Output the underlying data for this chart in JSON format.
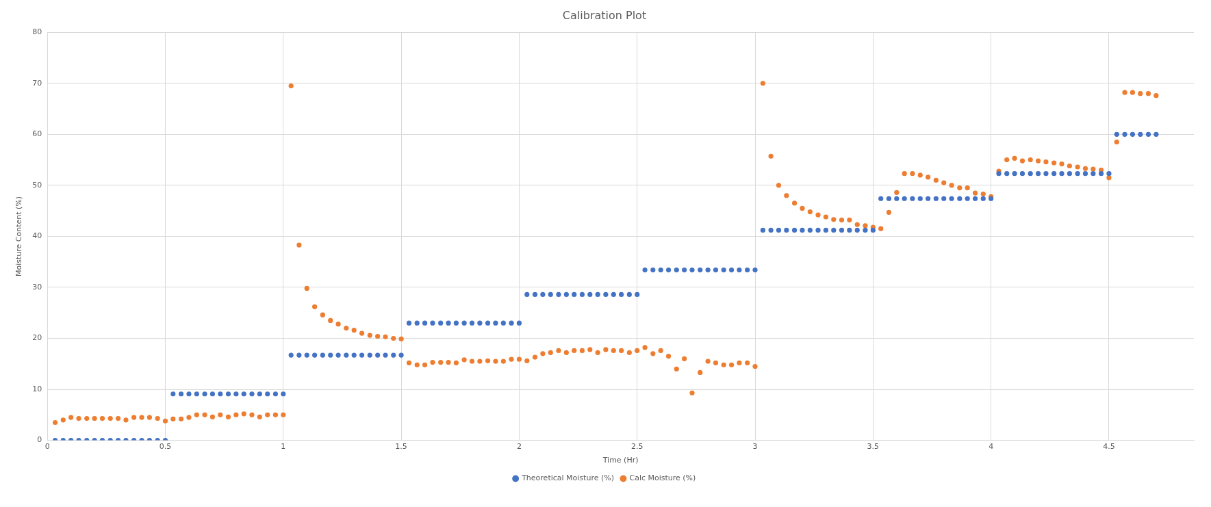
{
  "chart_data": {
    "type": "scatter",
    "title": "Calibration Plot",
    "xlabel": "Time (Hr)",
    "ylabel": "Moisture Content (%)",
    "x": [
      0.033,
      0.067,
      0.1,
      0.133,
      0.167,
      0.2,
      0.233,
      0.267,
      0.3,
      0.333,
      0.367,
      0.4,
      0.433,
      0.467,
      0.5,
      0.533,
      0.567,
      0.6,
      0.633,
      0.667,
      0.7,
      0.733,
      0.767,
      0.8,
      0.833,
      0.867,
      0.9,
      0.933,
      0.967,
      1,
      1.033,
      1.067,
      1.1,
      1.133,
      1.167,
      1.2,
      1.233,
      1.267,
      1.3,
      1.333,
      1.367,
      1.4,
      1.433,
      1.467,
      1.5,
      1.533,
      1.567,
      1.6,
      1.633,
      1.667,
      1.7,
      1.733,
      1.767,
      1.8,
      1.833,
      1.867,
      1.9,
      1.933,
      1.967,
      2,
      2.033,
      2.067,
      2.1,
      2.133,
      2.167,
      2.2,
      2.233,
      2.267,
      2.3,
      2.333,
      2.367,
      2.4,
      2.433,
      2.467,
      2.5,
      2.533,
      2.567,
      2.6,
      2.633,
      2.667,
      2.7,
      2.733,
      2.767,
      2.8,
      2.833,
      2.867,
      2.9,
      2.933,
      2.967,
      3,
      3.033,
      3.067,
      3.1,
      3.133,
      3.167,
      3.2,
      3.233,
      3.267,
      3.3,
      3.333,
      3.367,
      3.4,
      3.433,
      3.467,
      3.5,
      3.533,
      3.567,
      3.6,
      3.633,
      3.667,
      3.7,
      3.733,
      3.767,
      3.8,
      3.833,
      3.867,
      3.9,
      3.933,
      3.967,
      4,
      4.033,
      4.067,
      4.1,
      4.133,
      4.167,
      4.2,
      4.233,
      4.267,
      4.3,
      4.333,
      4.367,
      4.4,
      4.433,
      4.467,
      4.5,
      4.533,
      4.567,
      4.6,
      4.633,
      4.667,
      4.7
    ],
    "series": [
      {
        "name": "Theoretical Moisture (%)",
        "color": "#4472c4",
        "values": [
          0,
          0,
          0,
          0,
          0,
          0,
          0,
          0,
          0,
          0,
          0,
          0,
          0,
          0,
          0,
          9.1,
          9.1,
          9.1,
          9.1,
          9.1,
          9.1,
          9.1,
          9.1,
          9.1,
          9.1,
          9.1,
          9.1,
          9.1,
          9.1,
          9.1,
          16.7,
          16.7,
          16.7,
          16.7,
          16.7,
          16.7,
          16.7,
          16.7,
          16.7,
          16.7,
          16.7,
          16.7,
          16.7,
          16.7,
          16.7,
          23,
          23,
          23,
          23,
          23,
          23,
          23,
          23,
          23,
          23,
          23,
          23,
          23,
          23,
          23,
          28.6,
          28.6,
          28.6,
          28.6,
          28.6,
          28.6,
          28.6,
          28.6,
          28.6,
          28.6,
          28.6,
          28.6,
          28.6,
          28.6,
          28.6,
          33.4,
          33.4,
          33.4,
          33.4,
          33.4,
          33.4,
          33.4,
          33.4,
          33.4,
          33.4,
          33.4,
          33.4,
          33.4,
          33.4,
          33.4,
          41.2,
          41.2,
          41.2,
          41.2,
          41.2,
          41.2,
          41.2,
          41.2,
          41.2,
          41.2,
          41.2,
          41.2,
          41.2,
          41.2,
          41.2,
          47.4,
          47.4,
          47.4,
          47.4,
          47.4,
          47.4,
          47.4,
          47.4,
          47.4,
          47.4,
          47.4,
          47.4,
          47.4,
          47.4,
          47.4,
          52.3,
          52.3,
          52.3,
          52.3,
          52.3,
          52.3,
          52.3,
          52.3,
          52.3,
          52.3,
          52.3,
          52.3,
          52.3,
          52.3,
          52.3,
          60,
          60,
          60,
          60,
          60,
          60
        ]
      },
      {
        "name": "Calc Moisture (%)",
        "color": "#ed7d31",
        "values": [
          3.5,
          4,
          4.5,
          4.3,
          4.3,
          4.3,
          4.3,
          4.3,
          4.3,
          4,
          4.5,
          4.5,
          4.5,
          4.3,
          3.8,
          4.2,
          4.2,
          4.5,
          5,
          5,
          4.6,
          5,
          4.6,
          5,
          5.2,
          5,
          4.6,
          5,
          5,
          5,
          69.5,
          38.3,
          29.8,
          26.2,
          24.6,
          23.5,
          22.8,
          22,
          21.6,
          21,
          20.6,
          20.4,
          20.3,
          20,
          19.9,
          15.2,
          14.8,
          14.8,
          15.3,
          15.3,
          15.3,
          15.2,
          15.8,
          15.5,
          15.5,
          15.6,
          15.5,
          15.5,
          15.9,
          15.9,
          15.6,
          16.3,
          17,
          17.2,
          17.6,
          17.2,
          17.6,
          17.6,
          17.8,
          17.2,
          17.8,
          17.6,
          17.6,
          17.2,
          17.6,
          18.2,
          17,
          17.6,
          16.5,
          14,
          16,
          9.3,
          13.3,
          15.5,
          15.2,
          14.8,
          14.8,
          15.2,
          15.2,
          14.5,
          70,
          55.7,
          50,
          48,
          46.5,
          45.5,
          44.8,
          44.2,
          43.8,
          43.3,
          43.2,
          43.2,
          42.3,
          42.1,
          41.8,
          41.5,
          44.7,
          48.6,
          52.3,
          52.3,
          52,
          51.6,
          51,
          50.5,
          50,
          49.5,
          49.5,
          48.5,
          48.3,
          47.8,
          52.8,
          55,
          55.3,
          54.8,
          55,
          54.8,
          54.6,
          54.4,
          54.2,
          53.8,
          53.6,
          53.3,
          53.2,
          53,
          51.5,
          58.5,
          68.2,
          68.2,
          68,
          68,
          67.6
        ]
      }
    ],
    "xlim": [
      0,
      4.86
    ],
    "xticks": [
      0,
      0.5,
      1,
      1.5,
      2,
      2.5,
      3,
      3.5,
      4,
      4.5
    ],
    "ylim": [
      0,
      80
    ],
    "yticks": [
      0,
      10,
      20,
      30,
      40,
      50,
      60,
      70,
      80
    ],
    "grid": true,
    "legend": "bottom",
    "marker": "circle"
  }
}
